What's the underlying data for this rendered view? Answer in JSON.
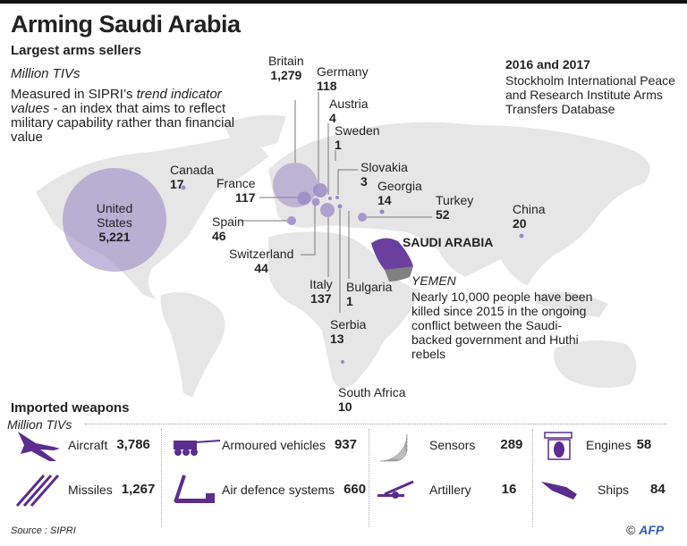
{
  "title": "Arming Saudi Arabia",
  "subtitle": "Largest arms sellers",
  "unit": "Million TIVs",
  "description": {
    "pre": "Measured in SIPRI’s ",
    "italic": "trend indicator values",
    "post": " - an index that aims to reflect military capability rather than financial value"
  },
  "period": "2016 and 2017",
  "source_top": "Stockholm International Peace and Research Institute Arms Transfers Database",
  "colors": {
    "bubble": "#9b8ac4",
    "saudi": "#6a3f9e",
    "yemen": "#808080",
    "land": "#e6e6e6",
    "icon": "#5b2d8e"
  },
  "sellers": [
    {
      "name": "United States",
      "value": "5,221"
    },
    {
      "name": "Britain",
      "value": "1,279"
    },
    {
      "name": "Italy",
      "value": "137"
    },
    {
      "name": "Germany",
      "value": "118"
    },
    {
      "name": "France",
      "value": "117"
    },
    {
      "name": "Turkey",
      "value": "52"
    },
    {
      "name": "Spain",
      "value": "46"
    },
    {
      "name": "Switzerland",
      "value": "44"
    },
    {
      "name": "China",
      "value": "20"
    },
    {
      "name": "Canada",
      "value": "17"
    },
    {
      "name": "Georgia",
      "value": "14"
    },
    {
      "name": "Serbia",
      "value": "13"
    },
    {
      "name": "South Africa",
      "value": "10"
    },
    {
      "name": "Austria",
      "value": "4"
    },
    {
      "name": "Slovakia",
      "value": "3"
    },
    {
      "name": "Sweden",
      "value": "1"
    },
    {
      "name": "Bulgaria",
      "value": "1"
    }
  ],
  "saudi_label": "SAUDI ARABIA",
  "yemen": {
    "label": "YEMEN",
    "text": "Nearly 10,000 people have been killed since 2015 in the ongoing conflict between the Saudi-backed government and Huthi rebels"
  },
  "weapons_title": "Imported weapons",
  "weapons_unit": "Million TIVs",
  "weapons": [
    {
      "name": "Aircraft",
      "value": "3,786",
      "icon": "aircraft-icon"
    },
    {
      "name": "Armoured vehicles",
      "value": "937",
      "icon": "armoured-vehicle-icon"
    },
    {
      "name": "Sensors",
      "value": "289",
      "icon": "sensor-icon"
    },
    {
      "name": "Engines",
      "value": "58",
      "icon": "engine-icon"
    },
    {
      "name": "Missiles",
      "value": "1,267",
      "icon": "missile-icon"
    },
    {
      "name": "Air defence systems",
      "value": "660",
      "icon": "air-defence-icon"
    },
    {
      "name": "Artillery",
      "value": "16",
      "icon": "artillery-icon"
    },
    {
      "name": "Ships",
      "value": "84",
      "icon": "ship-icon"
    }
  ],
  "source": "Source : SIPRI",
  "credit": {
    "symbol": "©",
    "brand": "AFP"
  }
}
